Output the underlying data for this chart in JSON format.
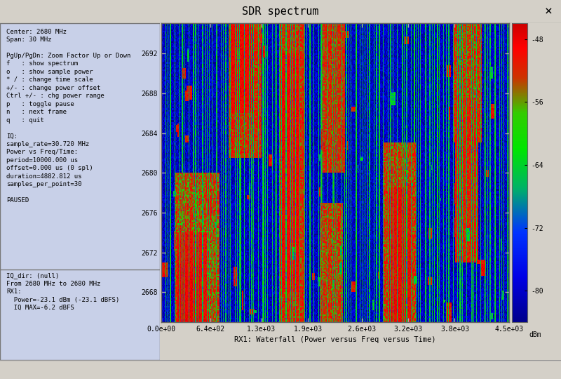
{
  "title": "SDR spectrum",
  "window_bg": "#d4d0c8",
  "plot_bg": "#c8d0e8",
  "left_panel_text": [
    "Center: 2680 MHz",
    "Span: 30 MHz",
    "",
    "PgUp/PgDn: Zoom Factor Up or Down",
    "f   : show spectrum",
    "o   : show sample power",
    "* / : change time scale",
    "+/- : change power offset",
    "Ctrl +/- : chg power range",
    "p   : toggle pause",
    "n   : next frame",
    "q   : quit",
    "",
    "IQ:",
    "sample_rate=30.720 MHz",
    "Power vs Freq/Time:",
    "period=10000.000 us",
    "offset=0.000 us (0 spl)",
    "duration=4882.812 us",
    "samples_per_point=30",
    "",
    "PAUSED"
  ],
  "bottom_left_text": [
    "IQ_dir: (null)",
    "From 2680 MHz to 2680 MHz",
    "RX1:",
    "  Power=-23.1 dBm (-23.1 dBFS)",
    "  IQ MAX=-6.2 dBFS"
  ],
  "waterfall_xlim": [
    0,
    4500
  ],
  "waterfall_ylim": [
    2665,
    2695
  ],
  "waterfall_yticks": [
    2668,
    2672,
    2676,
    2680,
    2684,
    2688,
    2692
  ],
  "waterfall_xticks": [
    0,
    640,
    1300,
    1900,
    2600,
    3200,
    3800,
    4500
  ],
  "waterfall_xtick_labels": [
    "0.0e+00",
    "6.4e+02",
    "1.3e+03",
    "1.9e+03",
    "2.6e+03",
    "3.2e+03",
    "3.8e+03",
    "4.5e+03"
  ],
  "colorbar_min": -84,
  "colorbar_max": -46,
  "colorbar_ticks": [
    -48,
    -56,
    -64,
    -72,
    -80
  ],
  "colorbar_label": "dBm",
  "xlabel": "RX1: Waterfall (Power versus Freq versus Time)",
  "seed": 42,
  "n_freq": 450,
  "n_time": 200
}
